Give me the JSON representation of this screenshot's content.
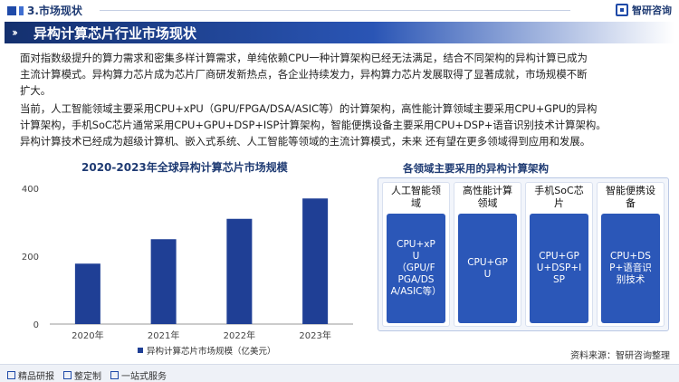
{
  "header": {
    "section_label": "3.市场现状",
    "logo_text": "智研咨询"
  },
  "banner": {
    "title": "异构计算芯片行业市场现状"
  },
  "body": {
    "paragraph1": "面对指数级提升的算力需求和密集多样计算需求，单纯依赖CPU一种计算架构已经无法满足，结合不同架构的异构计算已成为\n主流计算模式。异构算力芯片成为芯片厂商研发新热点，各企业持续发力，异构算力芯片发展取得了显著成就，市场规模不断\n扩大。",
    "paragraph2": "当前，人工智能领域主要采用CPU+xPU（GPU/FPGA/DSA/ASIC等）的计算架构，高性能计算领域主要采用CPU+GPU的异构\n计算架构，手机SoC芯片通常采用CPU+GPU+DSP+ISP计算架构，智能便携设备主要采用CPU+DSP+语音识别技术计算架构。\n异构计算技术已经成为超级计算机、嵌入式系统、人工智能等领域的主流计算模式，未来 还有望在更多领域得到应用和发展。"
  },
  "chart_data": {
    "type": "bar",
    "title": "2020-2023年全球异构计算芯片市场规模",
    "categories": [
      "2020年",
      "2021年",
      "2022年",
      "2023年"
    ],
    "series": [
      {
        "name": "异构计算芯片市场规模（亿美元）",
        "values": [
          178,
          250,
          310,
          370
        ]
      }
    ],
    "ylim": [
      0,
      400
    ],
    "yticks": [
      0,
      200,
      400
    ],
    "grid": false,
    "legend": "bottom",
    "colors": {
      "bar": "#1f3f95",
      "axis": "#999999"
    }
  },
  "diagram": {
    "title": "各领域主要采用的异构计算架构",
    "columns": [
      {
        "heading": "人工智能领\n域",
        "content": "CPU+xP\nU\n（GPU/F\nPGA/DS\nA/ASIC等）"
      },
      {
        "heading": "高性能计算\n领域",
        "content": "CPU+GP\nU"
      },
      {
        "heading": "手机SoC芯\n片",
        "content": "CPU+GP\nU+DSP+I\nSP"
      },
      {
        "heading": "智能便携设\n备",
        "content": "CPU+DS\nP+语音识\n别技术"
      }
    ],
    "colors": {
      "body": "#2b57b8",
      "frame": "#f2f5fb"
    }
  },
  "footer": {
    "items": [
      "精品研报",
      "整定制",
      "一站式服务"
    ],
    "source": "资料来源：智研咨询整理"
  }
}
